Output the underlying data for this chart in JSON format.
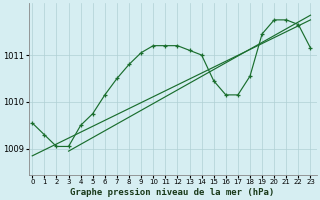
{
  "title": "Graphe pression niveau de la mer (hPa)",
  "bg_color": "#d6eef2",
  "grid_color": "#b0d0d4",
  "line_color": "#1a6e2e",
  "x_ticks": [
    0,
    1,
    2,
    3,
    4,
    5,
    6,
    7,
    8,
    9,
    10,
    11,
    12,
    13,
    14,
    15,
    16,
    17,
    18,
    19,
    20,
    21,
    22,
    23
  ],
  "y_ticks": [
    1009,
    1010,
    1011
  ],
  "ylim": [
    1008.45,
    1012.1
  ],
  "xlim": [
    -0.3,
    23.5
  ],
  "series1_x": [
    0,
    1,
    2,
    3,
    4,
    5,
    6,
    7,
    8,
    9,
    10,
    11,
    12,
    13,
    14,
    15,
    16,
    17,
    18,
    19,
    20,
    21,
    22,
    23
  ],
  "series1_y": [
    1009.55,
    1009.3,
    1009.05,
    1009.05,
    1009.5,
    1009.75,
    1010.15,
    1010.5,
    1010.8,
    1011.05,
    1011.2,
    1011.2,
    1011.2,
    1011.1,
    1011.0,
    1010.45,
    1010.15,
    1010.15,
    1010.55,
    1011.45,
    1011.75,
    1011.75,
    1011.65,
    1011.15
  ],
  "series2_x": [
    0,
    23
  ],
  "series2_y": [
    1008.85,
    1011.75
  ],
  "series3_x": [
    3,
    23
  ],
  "series3_y": [
    1008.95,
    1011.85
  ]
}
